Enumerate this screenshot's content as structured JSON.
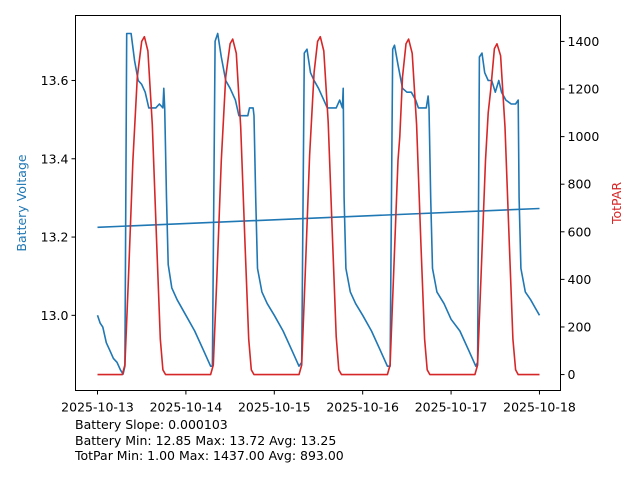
{
  "chart_data": {
    "type": "line",
    "xlabel": "",
    "ylabel_left": "Battery Voltage",
    "ylabel_right": "TotPAR",
    "x_ticks": [
      "2025-10-13",
      "2025-10-14",
      "2025-10-15",
      "2025-10-16",
      "2025-10-17",
      "2025-10-18"
    ],
    "x_unit": "days since 2025-10-13",
    "xlim": [
      -0.249,
      5.238
    ],
    "ylim_left": [
      12.808,
      13.766
    ],
    "ylim_right": [
      -67,
      1509
    ],
    "y_ticks_left": [
      "13.0",
      "13.2",
      "13.4",
      "13.6"
    ],
    "y_ticks_right": [
      "0",
      "200",
      "400",
      "600",
      "800",
      "1000",
      "1200",
      "1400"
    ],
    "grid": false,
    "colors": {
      "battery": "#1f77b4",
      "par": "#d62728"
    },
    "series": [
      {
        "name": "Battery Voltage",
        "axis": "left",
        "points": [
          [
            0,
            13.0
          ],
          [
            0.03,
            12.98
          ],
          [
            0.06,
            12.97
          ],
          [
            0.1,
            12.93
          ],
          [
            0.14,
            12.91
          ],
          [
            0.18,
            12.89
          ],
          [
            0.22,
            12.88
          ],
          [
            0.26,
            12.86
          ],
          [
            0.29,
            12.85
          ],
          [
            0.31,
            12.87
          ],
          [
            0.33,
            13.72
          ],
          [
            0.38,
            13.72
          ],
          [
            0.42,
            13.65
          ],
          [
            0.46,
            13.6
          ],
          [
            0.5,
            13.59
          ],
          [
            0.54,
            13.57
          ],
          [
            0.58,
            13.53
          ],
          [
            0.66,
            13.53
          ],
          [
            0.7,
            13.54
          ],
          [
            0.74,
            13.53
          ],
          [
            0.75,
            13.58
          ],
          [
            0.76,
            13.53
          ],
          [
            0.78,
            13.3
          ],
          [
            0.8,
            13.13
          ],
          [
            0.84,
            13.07
          ],
          [
            0.9,
            13.04
          ],
          [
            1.0,
            13.0
          ],
          [
            1.1,
            12.96
          ],
          [
            1.2,
            12.91
          ],
          [
            1.28,
            12.87
          ],
          [
            1.3,
            12.87
          ],
          [
            1.33,
            13.7
          ],
          [
            1.36,
            13.72
          ],
          [
            1.4,
            13.66
          ],
          [
            1.45,
            13.6
          ],
          [
            1.5,
            13.58
          ],
          [
            1.56,
            13.55
          ],
          [
            1.6,
            13.51
          ],
          [
            1.7,
            13.51
          ],
          [
            1.72,
            13.53
          ],
          [
            1.76,
            13.53
          ],
          [
            1.77,
            13.51
          ],
          [
            1.79,
            13.3
          ],
          [
            1.81,
            13.12
          ],
          [
            1.86,
            13.06
          ],
          [
            1.92,
            13.03
          ],
          [
            2.0,
            13.0
          ],
          [
            2.1,
            12.96
          ],
          [
            2.2,
            12.91
          ],
          [
            2.28,
            12.87
          ],
          [
            2.31,
            12.88
          ],
          [
            2.34,
            13.67
          ],
          [
            2.37,
            13.68
          ],
          [
            2.41,
            13.62
          ],
          [
            2.45,
            13.6
          ],
          [
            2.5,
            13.58
          ],
          [
            2.56,
            13.55
          ],
          [
            2.6,
            13.53
          ],
          [
            2.7,
            13.53
          ],
          [
            2.74,
            13.55
          ],
          [
            2.77,
            13.53
          ],
          [
            2.78,
            13.58
          ],
          [
            2.79,
            13.3
          ],
          [
            2.81,
            13.12
          ],
          [
            2.86,
            13.06
          ],
          [
            2.92,
            13.03
          ],
          [
            3.0,
            13.0
          ],
          [
            3.1,
            12.96
          ],
          [
            3.2,
            12.91
          ],
          [
            3.28,
            12.87
          ],
          [
            3.31,
            12.87
          ],
          [
            3.34,
            13.68
          ],
          [
            3.36,
            13.69
          ],
          [
            3.4,
            13.64
          ],
          [
            3.45,
            13.58
          ],
          [
            3.5,
            13.57
          ],
          [
            3.55,
            13.57
          ],
          [
            3.6,
            13.55
          ],
          [
            3.63,
            13.53
          ],
          [
            3.72,
            13.53
          ],
          [
            3.74,
            13.56
          ],
          [
            3.75,
            13.53
          ],
          [
            3.77,
            13.3
          ],
          [
            3.79,
            13.12
          ],
          [
            3.84,
            13.06
          ],
          [
            3.92,
            13.03
          ],
          [
            4.0,
            12.99
          ],
          [
            4.1,
            12.96
          ],
          [
            4.2,
            12.91
          ],
          [
            4.28,
            12.87
          ],
          [
            4.3,
            12.88
          ],
          [
            4.32,
            13.66
          ],
          [
            4.35,
            13.67
          ],
          [
            4.38,
            13.62
          ],
          [
            4.42,
            13.6
          ],
          [
            4.46,
            13.6
          ],
          [
            4.5,
            13.57
          ],
          [
            4.54,
            13.6
          ],
          [
            4.57,
            13.57
          ],
          [
            4.62,
            13.55
          ],
          [
            4.68,
            13.54
          ],
          [
            4.73,
            13.54
          ],
          [
            4.76,
            13.55
          ],
          [
            4.77,
            13.3
          ],
          [
            4.79,
            13.12
          ],
          [
            4.84,
            13.06
          ],
          [
            4.9,
            13.04
          ],
          [
            4.95,
            13.02
          ],
          [
            5.0,
            13.0
          ]
        ]
      },
      {
        "name": "Battery Trend",
        "axis": "left",
        "points": [
          [
            0,
            13.225
          ],
          [
            5,
            13.273
          ]
        ]
      },
      {
        "name": "TotPAR",
        "axis": "right",
        "points": [
          [
            0,
            0
          ],
          [
            0.28,
            0
          ],
          [
            0.31,
            40
          ],
          [
            0.35,
            400
          ],
          [
            0.4,
            900
          ],
          [
            0.45,
            1250
          ],
          [
            0.5,
            1400
          ],
          [
            0.53,
            1420
          ],
          [
            0.57,
            1360
          ],
          [
            0.62,
            1050
          ],
          [
            0.67,
            550
          ],
          [
            0.71,
            150
          ],
          [
            0.74,
            20
          ],
          [
            0.77,
            0
          ],
          [
            1.28,
            0
          ],
          [
            1.31,
            40
          ],
          [
            1.35,
            400
          ],
          [
            1.4,
            900
          ],
          [
            1.45,
            1250
          ],
          [
            1.5,
            1390
          ],
          [
            1.53,
            1410
          ],
          [
            1.57,
            1350
          ],
          [
            1.62,
            1040
          ],
          [
            1.67,
            540
          ],
          [
            1.71,
            150
          ],
          [
            1.74,
            20
          ],
          [
            1.77,
            0
          ],
          [
            2.28,
            0
          ],
          [
            2.31,
            40
          ],
          [
            2.35,
            420
          ],
          [
            2.4,
            920
          ],
          [
            2.45,
            1270
          ],
          [
            2.49,
            1400
          ],
          [
            2.52,
            1420
          ],
          [
            2.56,
            1360
          ],
          [
            2.61,
            1060
          ],
          [
            2.66,
            560
          ],
          [
            2.7,
            160
          ],
          [
            2.73,
            20
          ],
          [
            2.76,
            0
          ],
          [
            3.28,
            0
          ],
          [
            3.31,
            40
          ],
          [
            3.35,
            420
          ],
          [
            3.4,
            900
          ],
          [
            3.42,
            1000
          ],
          [
            3.45,
            1250
          ],
          [
            3.49,
            1390
          ],
          [
            3.52,
            1410
          ],
          [
            3.56,
            1350
          ],
          [
            3.61,
            1050
          ],
          [
            3.66,
            540
          ],
          [
            3.7,
            150
          ],
          [
            3.73,
            20
          ],
          [
            3.76,
            0
          ],
          [
            4.27,
            0
          ],
          [
            4.3,
            40
          ],
          [
            4.34,
            420
          ],
          [
            4.39,
            900
          ],
          [
            4.42,
            1100
          ],
          [
            4.45,
            1200
          ],
          [
            4.49,
            1370
          ],
          [
            4.52,
            1390
          ],
          [
            4.56,
            1340
          ],
          [
            4.61,
            1040
          ],
          [
            4.66,
            540
          ],
          [
            4.7,
            150
          ],
          [
            4.73,
            20
          ],
          [
            4.76,
            0
          ],
          [
            5.0,
            0
          ]
        ]
      }
    ]
  },
  "stats": {
    "slope": "Battery Slope: 0.000103",
    "battery": "Battery Min: 12.85 Max: 13.72 Avg: 13.25",
    "par": "TotPar Min: 1.00 Max: 1437.00 Avg: 893.00"
  }
}
